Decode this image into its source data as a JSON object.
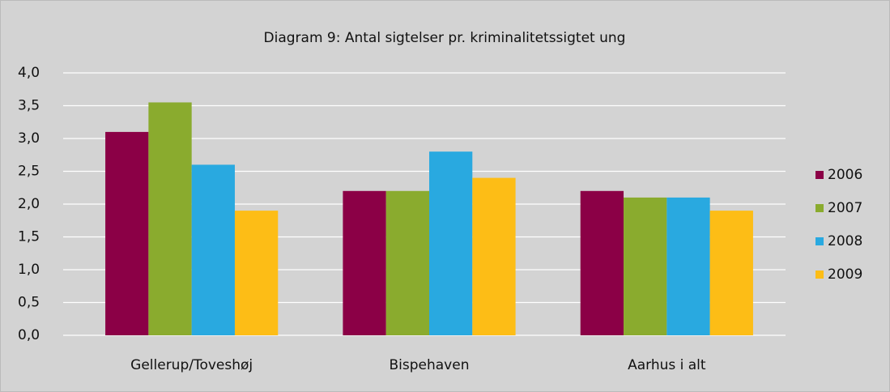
{
  "chart_data": {
    "type": "bar",
    "title": "Diagram 9: Antal sigtelser pr. kriminalitetssigtet ung",
    "categories": [
      "Gellerup/Toveshøj",
      "Bispehaven",
      "Aarhus i alt"
    ],
    "series": [
      {
        "name": "2006",
        "color": "#8b0046",
        "values": [
          3.1,
          2.2,
          2.2
        ]
      },
      {
        "name": "2007",
        "color": "#8aab2e",
        "values": [
          3.55,
          2.2,
          2.1
        ]
      },
      {
        "name": "2008",
        "color": "#29a9e0",
        "values": [
          2.6,
          2.8,
          2.1
        ]
      },
      {
        "name": "2009",
        "color": "#fdbd16",
        "values": [
          1.9,
          2.4,
          1.9
        ]
      }
    ],
    "ylim": [
      0,
      4
    ],
    "yticks": [
      {
        "value": 0,
        "label": "0,0"
      },
      {
        "value": 0.5,
        "label": "0,5"
      },
      {
        "value": 1,
        "label": "1,0"
      },
      {
        "value": 1.5,
        "label": "1,5"
      },
      {
        "value": 2,
        "label": "2,0"
      },
      {
        "value": 2.5,
        "label": "2,5"
      },
      {
        "value": 3,
        "label": "3,0"
      },
      {
        "value": 3.5,
        "label": "3,5"
      },
      {
        "value": 4,
        "label": "4,0"
      }
    ],
    "grid": true,
    "legend": "right"
  }
}
